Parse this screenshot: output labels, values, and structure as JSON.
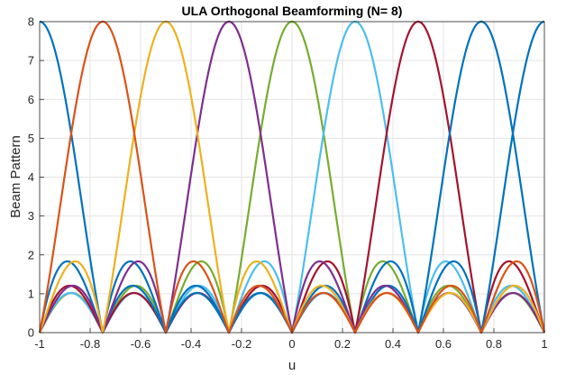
{
  "chart_data": {
    "type": "line",
    "title": "ULA Orthogonal Beamforming (N= 8)",
    "xlabel": "u",
    "ylabel": "Beam Pattern",
    "xlim": [
      -1,
      1
    ],
    "ylim": [
      0,
      8
    ],
    "grid": true,
    "x_ticks": [
      "-1",
      "-0.8",
      "-0.6",
      "-0.4",
      "-0.2",
      "0",
      "0.2",
      "0.4",
      "0.6",
      "0.8",
      "1"
    ],
    "y_ticks": [
      "0",
      "1",
      "2",
      "3",
      "4",
      "5",
      "6",
      "7",
      "8"
    ],
    "N": 8,
    "series": [
      {
        "beam_center_u": 0,
        "color": "#77AC30"
      },
      {
        "beam_center_u": 0.25,
        "color": "#4DBEEE"
      },
      {
        "beam_center_u": 0.5,
        "color": "#A2142F"
      },
      {
        "beam_center_u": 0.75,
        "color": "#0072BD"
      },
      {
        "beam_center_u": 1,
        "color": "#0072BD"
      },
      {
        "beam_center_u": -0.25,
        "color": "#7E2F8E"
      },
      {
        "beam_center_u": -0.5,
        "color": "#EDB120"
      },
      {
        "beam_center_u": -0.75,
        "color": "#D95319"
      }
    ]
  }
}
